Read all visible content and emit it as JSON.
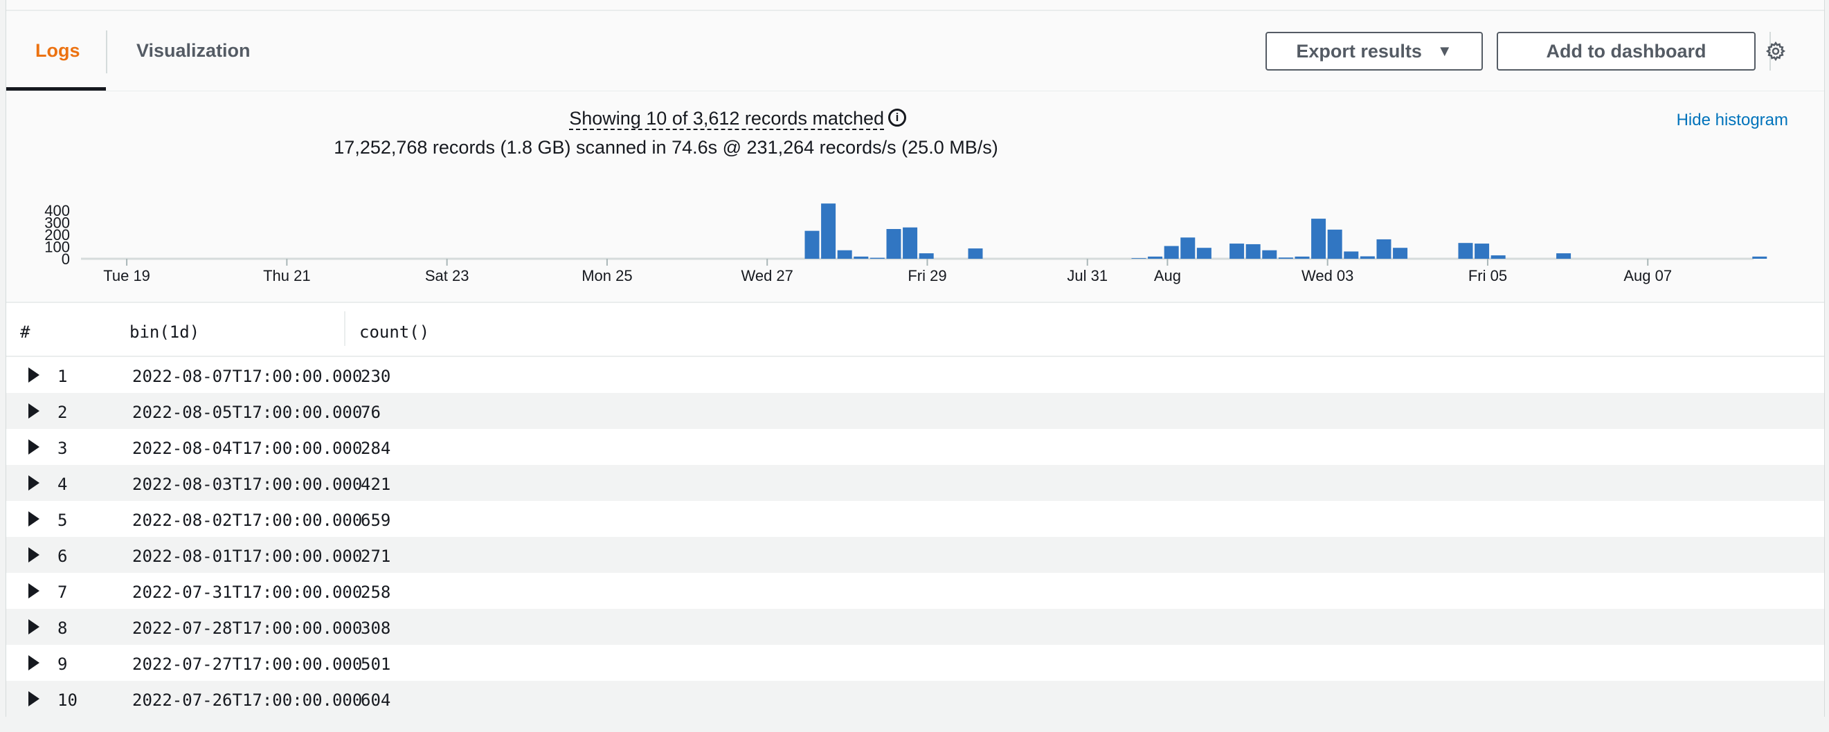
{
  "tabs": [
    {
      "label": "Logs",
      "active": true
    },
    {
      "label": "Visualization",
      "active": false
    }
  ],
  "toolbar": {
    "export_label": "Export results",
    "add_label": "Add to dashboard",
    "settings_icon": "gear-icon"
  },
  "summary": {
    "matched_text": "Showing 10 of 3,612 records matched",
    "scanned_text": "17,252,768 records (1.8 GB) scanned in 74.6s @ 231,264 records/s (25.0 MB/s)",
    "hide_histogram": "Hide histogram"
  },
  "colors": {
    "accent": "#ec7211",
    "bar": "#3176c2",
    "link": "#0073bb"
  },
  "chart_data": {
    "type": "bar",
    "ylim": [
      0,
      450
    ],
    "y_ticks": [
      "400",
      "300",
      "200",
      "100",
      "0"
    ],
    "y_tick_values": [
      400,
      300,
      200,
      100,
      0
    ],
    "x_tick_labels": [
      "Tue 19",
      "Thu 21",
      "Sat 23",
      "Mon 25",
      "Wed 27",
      "Fri 29",
      "Jul 31",
      "Aug",
      "Wed 03",
      "Fri 05",
      "Aug 07"
    ],
    "x_tick_slots": [
      2.8,
      12.6,
      22.4,
      32.2,
      42.0,
      51.8,
      61.6,
      66.5,
      76.3,
      86.1,
      95.9
    ],
    "bar_slots": [
      44.3,
      45.3,
      46.3,
      47.3,
      48.3,
      49.3,
      50.3,
      51.3,
      54.3,
      64.3,
      65.3,
      66.3,
      67.3,
      68.3,
      69.3,
      70.3,
      71.3,
      72.3,
      73.3,
      74.3,
      75.3,
      76.3,
      77.3,
      78.3,
      79.3,
      80.3,
      81.3,
      82.3,
      84.3,
      85.3,
      86.3,
      88.3,
      89.3,
      90.3,
      93.3,
      102.3
    ],
    "values": [
      230,
      455,
      70,
      18,
      8,
      245,
      258,
      45,
      85,
      5,
      18,
      105,
      175,
      90,
      0,
      125,
      120,
      70,
      10,
      18,
      330,
      240,
      60,
      20,
      160,
      90,
      0,
      0,
      130,
      125,
      28,
      0,
      0,
      45,
      0,
      18
    ]
  },
  "table": {
    "headers": [
      "#",
      "bin(1d)",
      "count()"
    ],
    "rows": [
      {
        "num": "1",
        "bin": "2022-08-07T17:00:00.000",
        "count": "230"
      },
      {
        "num": "2",
        "bin": "2022-08-05T17:00:00.000",
        "count": "76"
      },
      {
        "num": "3",
        "bin": "2022-08-04T17:00:00.000",
        "count": "284"
      },
      {
        "num": "4",
        "bin": "2022-08-03T17:00:00.000",
        "count": "421"
      },
      {
        "num": "5",
        "bin": "2022-08-02T17:00:00.000",
        "count": "659"
      },
      {
        "num": "6",
        "bin": "2022-08-01T17:00:00.000",
        "count": "271"
      },
      {
        "num": "7",
        "bin": "2022-07-31T17:00:00.000",
        "count": "258"
      },
      {
        "num": "8",
        "bin": "2022-07-28T17:00:00.000",
        "count": "308"
      },
      {
        "num": "9",
        "bin": "2022-07-27T17:00:00.000",
        "count": "501"
      },
      {
        "num": "10",
        "bin": "2022-07-26T17:00:00.000",
        "count": "604"
      }
    ]
  }
}
